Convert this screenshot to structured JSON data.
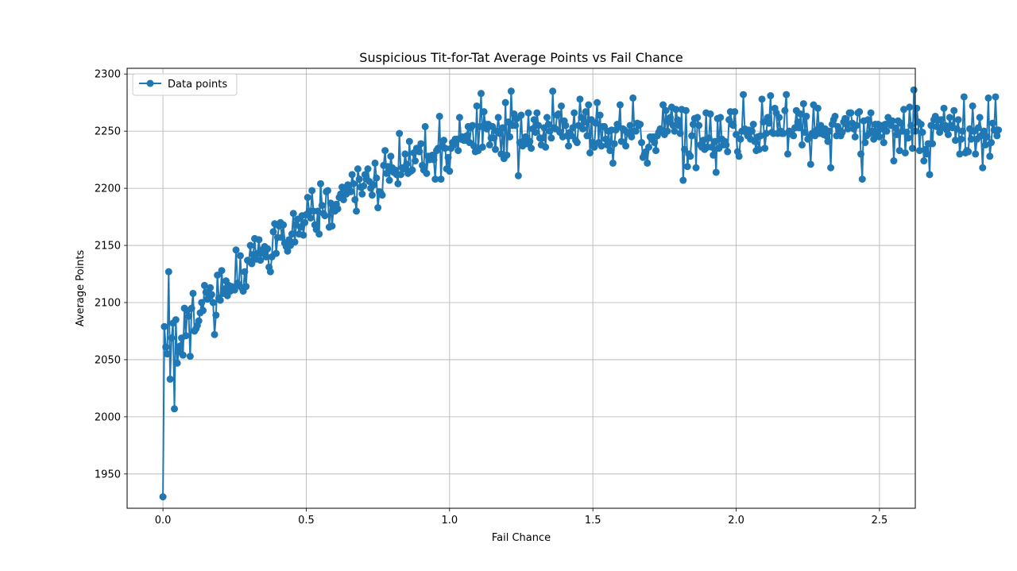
{
  "chart_data": {
    "type": "line",
    "title": "Suspicious Tit-for-Tat Average Points vs Fail Chance",
    "xlabel": "Fail Chance",
    "ylabel": "Average Points",
    "xlim": [
      -0.125,
      2.625
    ],
    "ylim": [
      1920,
      2305
    ],
    "xticks": [
      0.0,
      0.5,
      1.0,
      1.5,
      2.0,
      2.5
    ],
    "xtick_labels": [
      "0.0",
      "0.5",
      "1.0",
      "1.5",
      "2.0",
      "2.5"
    ],
    "yticks": [
      1950,
      2000,
      2050,
      2100,
      2150,
      2200,
      2250,
      2300
    ],
    "ytick_labels": [
      "1950",
      "2000",
      "2050",
      "2100",
      "2150",
      "2200",
      "2250",
      "2300"
    ],
    "grid": true,
    "legend_position": "top-left",
    "series_color": "#1f77b4",
    "series": [
      {
        "name": "Data points",
        "x_start": 0.0,
        "x_step": 0.005,
        "values": [
          1930,
          2079,
          2061,
          2055,
          2127,
          2033,
          2069,
          2082,
          2007,
          2085,
          2047,
          2057,
          2062,
          2069,
          2054,
          2095,
          2071,
          2093,
          2088,
          2053,
          2095,
          2108,
          2075,
          2077,
          2080,
          2084,
          2091,
          2100,
          2093,
          2115,
          2109,
          2103,
          2105,
          2113,
          2107,
          2100,
          2072,
          2089,
          2124,
          2104,
          2102,
          2128,
          2108,
          2112,
          2119,
          2106,
          2115,
          2110,
          2114,
          2112,
          2111,
          2146,
          2117,
          2115,
          2141,
          2113,
          2110,
          2127,
          2114,
          2137,
          2136,
          2150,
          2134,
          2142,
          2156,
          2138,
          2143,
          2155,
          2137,
          2146,
          2143,
          2149,
          2140,
          2147,
          2131,
          2127,
          2140,
          2162,
          2169,
          2143,
          2157,
          2167,
          2170,
          2157,
          2168,
          2152,
          2149,
          2145,
          2155,
          2150,
          2160,
          2178,
          2153,
          2168,
          2173,
          2160,
          2166,
          2176,
          2159,
          2170,
          2177,
          2192,
          2180,
          2174,
          2198,
          2180,
          2168,
          2164,
          2180,
          2160,
          2204,
          2185,
          2178,
          2176,
          2197,
          2198,
          2166,
          2187,
          2167,
          2182,
          2180,
          2186,
          2182,
          2192,
          2195,
          2201,
          2190,
          2200,
          2195,
          2203,
          2199,
          2197,
          2212,
          2204,
          2190,
          2180,
          2217,
          2208,
          2201,
          2195,
          2202,
          2212,
          2208,
          2217,
          2206,
          2200,
          2194,
          2203,
          2222,
          2209,
          2183,
          2197,
          2196,
          2194,
          2220,
          2233,
          2213,
          2219,
          2207,
          2228,
          2218,
          2214,
          2216,
          2212,
          2204,
          2248,
          2212,
          2218,
          2217,
          2230,
          2221,
          2213,
          2241,
          2215,
          2216,
          2231,
          2224,
          2235,
          2233,
          2232,
          2239,
          2220,
          2216,
          2254,
          2213,
          2228,
          2225,
          2226,
          2229,
          2225,
          2208,
          2233,
          2235,
          2263,
          2208,
          2237,
          2242,
          2235,
          2217,
          2227,
          2215,
          2235,
          2240,
          2238,
          2243,
          2243,
          2233,
          2262,
          2243,
          2245,
          2242,
          2242,
          2246,
          2254,
          2240,
          2253,
          2255,
          2237,
          2232,
          2272,
          2233,
          2254,
          2283,
          2236,
          2267,
          2256,
          2252,
          2256,
          2238,
          2244,
          2254,
          2244,
          2234,
          2250,
          2262,
          2248,
          2230,
          2253,
          2226,
          2275,
          2229,
          2258,
          2245,
          2285,
          2255,
          2265,
          2255,
          2261,
          2211,
          2240,
          2264,
          2237,
          2242,
          2245,
          2239,
          2266,
          2241,
          2235,
          2252,
          2260,
          2249,
          2266,
          2255,
          2244,
          2238,
          2244,
          2253,
          2236,
          2262,
          2256,
          2250,
          2244,
          2285,
          2253,
          2252,
          2264,
          2265,
          2249,
          2272,
          2245,
          2259,
          2255,
          2246,
          2237,
          2249,
          2246,
          2253,
          2266,
          2242,
          2240,
          2255,
          2278,
          2262,
          2252,
          2258,
          2267,
          2246,
          2273,
          2231,
          2260,
          2240,
          2236,
          2257,
          2275,
          2240,
          2264,
          2237,
          2254,
          2254,
          2243,
          2238,
          2250,
          2233,
          2251,
          2222,
          2239,
          2251,
          2256,
          2254,
          2273,
          2241,
          2252,
          2251,
          2237,
          2249,
          2248,
          2255,
          2245,
          2279,
          2250,
          2250,
          2257,
          2255,
          2256,
          2240,
          2227,
          2230,
          2232,
          2222,
          2236,
          2245,
          2243,
          2245,
          2240,
          2233,
          2246,
          2249,
          2252,
          2250,
          2273,
          2247,
          2268,
          2250,
          2258,
          2262,
          2271,
          2255,
          2250,
          2269,
          2260,
          2255,
          2248,
          2269,
          2207,
          2234,
          2268,
          2219,
          2230,
          2228,
          2246,
          2256,
          2261,
          2218,
          2262,
          2255,
          2238,
          2236,
          2242,
          2234,
          2266,
          2236,
          2244,
          2265,
          2236,
          2229,
          2241,
          2214,
          2261,
          2235,
          2262,
          2243,
          2238,
          2241,
          2238,
          2232,
          2260,
          2267,
          2256,
          2255,
          2267,
          2247,
          2232,
          2228,
          2243,
          2250,
          2282,
          2252,
          2249,
          2246,
          2251,
          2243,
          2250,
          2256,
          2241,
          2233,
          2245,
          2234,
          2246,
          2278,
          2258,
          2235,
          2248,
          2262,
          2257,
          2281,
          2249,
          2248,
          2270,
          2266,
          2248,
          2262,
          2250,
          2248,
          2248,
          2268,
          2282,
          2230,
          2250,
          2248,
          2247,
          2246,
          2253,
          2268,
          2258,
          2253,
          2265,
          2238,
          2274,
          2249,
          2263,
          2243,
          2245,
          2221,
          2248,
          2273,
          2246,
          2251,
          2270,
          2248,
          2255,
          2248,
          2247,
          2252,
          2246,
          2241,
          2250,
          2218,
          2256,
          2260,
          2263,
          2246,
          2254,
          2251,
          2246,
          2249,
          2258,
          2261,
          2256,
          2252,
          2266,
          2266,
          2257,
          2252,
          2245,
          2255,
          2266,
          2267,
          2230,
          2208,
          2259,
          2240,
          2246,
          2260,
          2248,
          2266,
          2250,
          2243,
          2256,
          2247,
          2256,
          2245,
          2252,
          2255,
          2240,
          2256,
          2250,
          2262,
          2258,
          2255,
          2259,
          2224,
          2253,
          2247,
          2259,
          2233,
          2257,
          2250,
          2269,
          2231,
          2249,
          2244,
          2271,
          2255,
          2235,
          2286,
          2250,
          2270,
          2258,
          2233,
          2256,
          2249,
          2224,
          2234,
          2230,
          2239,
          2212,
          2255,
          2239,
          2260,
          2263,
          2254,
          2260,
          2249,
          2260,
          2253,
          2270,
          2255,
          2251,
          2247,
          2262,
          2255,
          2253,
          2268,
          2242,
          2252,
          2260,
          2230,
          2243,
          2250,
          2280,
          2231,
          2233,
          2232,
          2252,
          2243,
          2272,
          2250,
          2230,
          2243,
          2253,
          2262,
          2246,
          2218,
          2250,
          2238,
          2245,
          2279,
          2228,
          2240,
          2257,
          2251,
          2280,
          2246,
          2251
        ]
      }
    ]
  }
}
